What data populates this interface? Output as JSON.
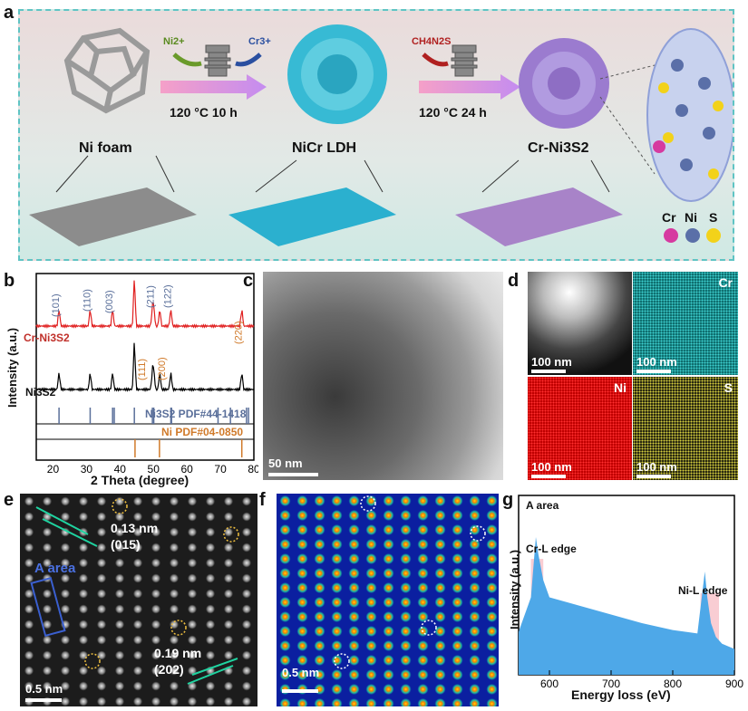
{
  "panels": {
    "a": {
      "label": "a",
      "ni_ion": "Ni2+",
      "cr_ion": "Cr3+",
      "reagent": "CH4N2S",
      "step1": "120 °C 10 h",
      "step2": "120 °C 24 h",
      "material1": "Ni foam",
      "material2": "NiCr LDH",
      "material3": "Cr-Ni3S2",
      "legend_cr": "Cr",
      "legend_ni": "Ni",
      "legend_s": "S",
      "colors": {
        "cr": "#d63aa0",
        "ni": "#5a6fa8",
        "s": "#f2d21a",
        "ldh": "#2bb6d1",
        "nis": "#a98fd6"
      }
    },
    "b": {
      "label": "b",
      "sample_label": "Cr-Ni3S2",
      "ref_label": "Ni3S2",
      "ref_card": "Ni3S2 PDF#44-1418",
      "ni_card": "Ni PDF#04-0850",
      "ylabel": "Intensity (a.u.)",
      "xlabel": "2 Theta (degree)",
      "xticks": [
        "20",
        "30",
        "40",
        "50",
        "60",
        "70",
        "80"
      ],
      "hkl_ni3s2": [
        "(101)",
        "(110)",
        "(003)",
        "(211)",
        "(122)"
      ],
      "hkl_ni": [
        "(111)",
        "(200)",
        "(220)"
      ]
    },
    "c": {
      "label": "c",
      "scale": "50 nm"
    },
    "d": {
      "label": "d",
      "scale1": "100 nm",
      "scale2": "100 nm",
      "scale3": "100 nm",
      "scale4": "100 nm",
      "el_cr": "Cr",
      "el_ni": "Ni",
      "el_s": "S"
    },
    "e": {
      "label": "e",
      "d1": "0.13 nm",
      "p1": "(015)",
      "d2": "0.19 nm",
      "p2": "(202)",
      "area": "A area",
      "scale": "0.5 nm"
    },
    "f": {
      "label": "f",
      "scale": "0.5 nm"
    },
    "g": {
      "label": "g",
      "area": "A area",
      "edge_cr": "Cr-L edge",
      "edge_ni": "Ni-L edge",
      "ylabel": "Intensity (a.u.)",
      "xlabel": "Energy loss (eV)",
      "xticks": [
        "600",
        "700",
        "800",
        "900"
      ]
    }
  },
  "chart_data": [
    {
      "type": "line",
      "title": "",
      "xlabel": "2 Theta (degree)",
      "ylabel": "Intensity (a.u.)",
      "xlim": [
        15,
        80
      ],
      "series": [
        {
          "name": "Cr-Ni3S2",
          "peaks_x": [
            21.8,
            31.1,
            37.8,
            44.3,
            49.7,
            50.1,
            51.9,
            55.2,
            76.4
          ]
        },
        {
          "name": "Ni3S2",
          "peaks_x": [
            21.8,
            31.1,
            37.8,
            44.3,
            49.7,
            50.1,
            51.9,
            55.2,
            76.4
          ]
        }
      ],
      "reference_ni3s2": [
        21.8,
        31.1,
        37.8,
        38.3,
        44.3,
        49.7,
        50.1,
        55.2,
        55.4,
        69.3,
        73.0,
        77.8,
        78.4
      ],
      "reference_ni": [
        44.5,
        51.8,
        76.4
      ]
    },
    {
      "type": "area",
      "title": "",
      "xlabel": "Energy loss (eV)",
      "ylabel": "Intensity (a.u.)",
      "xlim": [
        550,
        900
      ],
      "series": [
        {
          "x": [
            550,
            570,
            578,
            582,
            590,
            600,
            650,
            700,
            750,
            800,
            840,
            852,
            856,
            862,
            870,
            880,
            900
          ],
          "y": [
            0.25,
            0.45,
            0.8,
            0.7,
            0.55,
            0.45,
            0.4,
            0.35,
            0.3,
            0.26,
            0.24,
            0.6,
            0.45,
            0.3,
            0.22,
            0.18,
            0.15
          ]
        }
      ]
    }
  ]
}
